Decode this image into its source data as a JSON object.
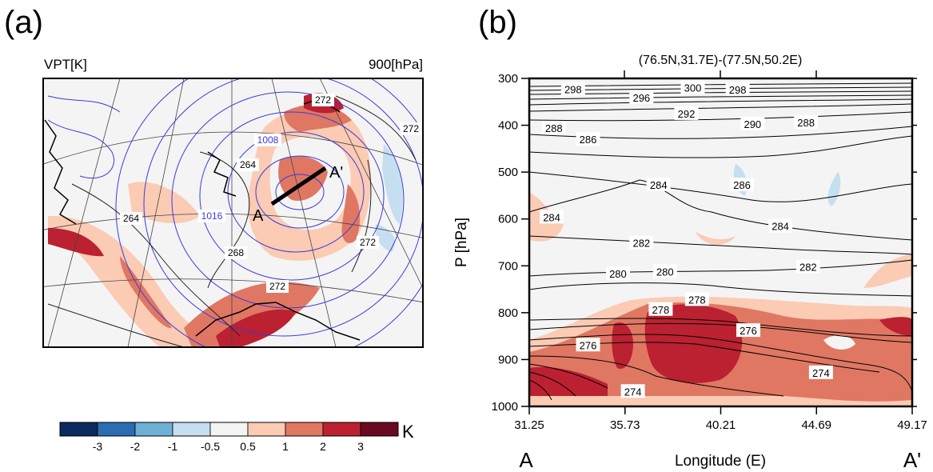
{
  "panels": {
    "a": {
      "label": "(a)",
      "title_left": "VPT[K]",
      "title_right": "900[hPa]",
      "contour_labels_black": [
        "272",
        "272",
        "264",
        "264",
        "268",
        "272",
        "272"
      ],
      "contour_labels_blue": [
        "1008",
        "1016"
      ],
      "cross_section": {
        "start_label": "A",
        "end_label": "A'"
      },
      "colorbar": {
        "unit": "K",
        "tick_labels": [
          "-3",
          "-2",
          "-1",
          "-0.5",
          "0.5",
          "1",
          "2",
          "3"
        ],
        "colors": [
          "#0a2a60",
          "#2b6cb2",
          "#6fb0d6",
          "#c5dff0",
          "#f4f4f4",
          "#fbcbb4",
          "#e07763",
          "#bb2130",
          "#6a0a22"
        ]
      }
    },
    "b": {
      "label": "(b)",
      "top_axis_label": "(76.5N,31.7E)-(77.5N,50.2E)",
      "x_end_labels": {
        "start": "A",
        "end": "A'"
      }
    }
  },
  "chart_data": [
    {
      "panel": "a",
      "type": "heatmap",
      "title_left": "VPT[K]",
      "title_right": "900[hPa]",
      "color_levels": [
        -3,
        -2,
        -1,
        -0.5,
        0.5,
        1,
        2,
        3
      ],
      "colorbar_unit": "K",
      "contour_labels": [
        264,
        268,
        272,
        1008,
        1016
      ]
    },
    {
      "panel": "b",
      "type": "heatmap",
      "xlabel": "Longitude (E)",
      "ylabel": "P [hPa]",
      "xlim": [
        31.25,
        49.17
      ],
      "ylim": [
        1000,
        300
      ],
      "x_ticks": [
        "31.25",
        "35.73",
        "40.21",
        "44.69",
        "49.17"
      ],
      "y_ticks": [
        "300",
        "400",
        "500",
        "600",
        "700",
        "800",
        "900",
        "1000"
      ],
      "contours": [
        {
          "value": 300,
          "label": "300",
          "x": 38.9,
          "p": 320
        },
        {
          "value": 298,
          "label": "298",
          "x": 33.3,
          "p": 323
        },
        {
          "value": 298,
          "label": "298",
          "x": 41.0,
          "p": 324
        },
        {
          "value": 296,
          "label": "296",
          "x": 36.5,
          "p": 341
        },
        {
          "value": 292,
          "label": "292",
          "x": 38.6,
          "p": 375
        },
        {
          "value": 290,
          "label": "290",
          "x": 41.7,
          "p": 397
        },
        {
          "value": 288,
          "label": "288",
          "x": 32.4,
          "p": 406
        },
        {
          "value": 288,
          "label": "288",
          "x": 44.2,
          "p": 394
        },
        {
          "value": 286,
          "label": "286",
          "x": 34.0,
          "p": 430
        },
        {
          "value": 286,
          "label": "286",
          "x": 41.2,
          "p": 527
        },
        {
          "value": 284,
          "label": "284",
          "x": 32.3,
          "p": 596
        },
        {
          "value": 284,
          "label": "284",
          "x": 37.3,
          "p": 527
        },
        {
          "value": 284,
          "label": "284",
          "x": 43.0,
          "p": 615
        },
        {
          "value": 282,
          "label": "282",
          "x": 36.5,
          "p": 651
        },
        {
          "value": 282,
          "label": "282",
          "x": 44.3,
          "p": 702
        },
        {
          "value": 280,
          "label": "280",
          "x": 35.4,
          "p": 717
        },
        {
          "value": 280,
          "label": "280",
          "x": 37.6,
          "p": 712
        },
        {
          "value": 278,
          "label": "278",
          "x": 37.4,
          "p": 793
        },
        {
          "value": 278,
          "label": "278",
          "x": 39.1,
          "p": 772
        },
        {
          "value": 276,
          "label": "276",
          "x": 34.0,
          "p": 869
        },
        {
          "value": 276,
          "label": "276",
          "x": 41.5,
          "p": 838
        },
        {
          "value": 274,
          "label": "274",
          "x": 36.1,
          "p": 968
        },
        {
          "value": 274,
          "label": "274",
          "x": 44.9,
          "p": 928
        }
      ]
    }
  ]
}
